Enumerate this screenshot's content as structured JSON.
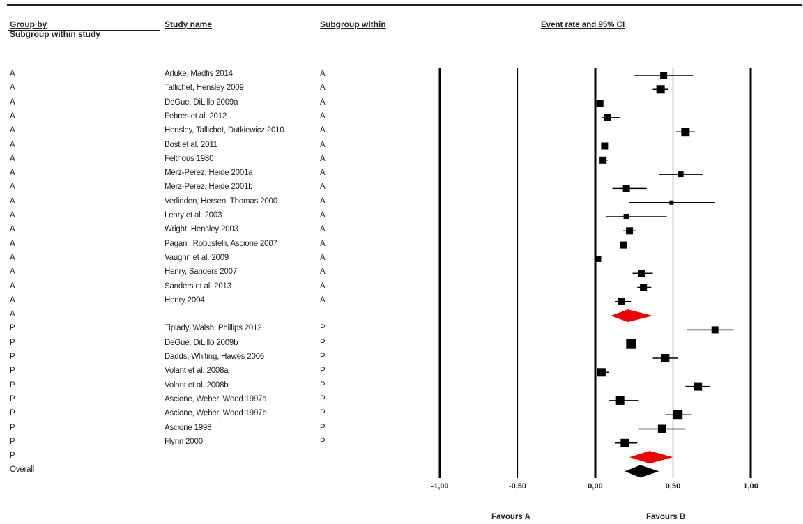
{
  "headers": {
    "group_by": "Group by",
    "subgroup_within_study": "Subgroup within study",
    "study_name": "Study name",
    "subgroup_within": "Subgroup within",
    "event_rate": "Event rate and 95% CI"
  },
  "footer": {
    "favours_left": "Favours A",
    "favours_right": "Favours B"
  },
  "chart_data": {
    "type": "forest",
    "xlim": [
      -1.0,
      1.0
    ],
    "x_ticks": [
      -1.0,
      -0.5,
      0.0,
      0.5,
      1.0
    ],
    "x_tick_labels": [
      "-1,00",
      "-0,50",
      "0,00",
      "0,50",
      "1,00"
    ],
    "rows": [
      {
        "group": "A",
        "study": "Arluke, Madfis 2014",
        "subgroup": "A",
        "estimate": 0.44,
        "lower": 0.25,
        "upper": 0.63,
        "weight": 5
      },
      {
        "group": "A",
        "study": "Tallichet, Hensley 2009",
        "subgroup": "A",
        "estimate": 0.42,
        "lower": 0.37,
        "upper": 0.47,
        "weight": 6
      },
      {
        "group": "A",
        "study": "DeGue, DiLillo 2009a",
        "subgroup": "A",
        "estimate": 0.03,
        "lower": 0.01,
        "upper": 0.05,
        "weight": 5
      },
      {
        "group": "A",
        "study": "Febres et al. 2012",
        "subgroup": "A",
        "estimate": 0.08,
        "lower": 0.04,
        "upper": 0.16,
        "weight": 5
      },
      {
        "group": "A",
        "study": "Hensley, Tallichet, Dutkiewicz 2010",
        "subgroup": "A",
        "estimate": 0.58,
        "lower": 0.52,
        "upper": 0.64,
        "weight": 6
      },
      {
        "group": "A",
        "study": "Bost et al. 2011",
        "subgroup": "A",
        "estimate": 0.06,
        "lower": 0.04,
        "upper": 0.08,
        "weight": 5
      },
      {
        "group": "A",
        "study": "Felthous 1980",
        "subgroup": "A",
        "estimate": 0.05,
        "lower": 0.03,
        "upper": 0.08,
        "weight": 5
      },
      {
        "group": "A",
        "study": "Merz-Perez, Heide 2001a",
        "subgroup": "A",
        "estimate": 0.55,
        "lower": 0.41,
        "upper": 0.69,
        "weight": 4
      },
      {
        "group": "A",
        "study": "Merz-Perez, Heide 2001b",
        "subgroup": "A",
        "estimate": 0.2,
        "lower": 0.11,
        "upper": 0.33,
        "weight": 5
      },
      {
        "group": "A",
        "study": "Verlinden, Hersen, Thomas 2000",
        "subgroup": "A",
        "estimate": 0.49,
        "lower": 0.22,
        "upper": 0.77,
        "weight": 3
      },
      {
        "group": "A",
        "study": "Leary et al. 2003",
        "subgroup": "A",
        "estimate": 0.2,
        "lower": 0.07,
        "upper": 0.46,
        "weight": 4
      },
      {
        "group": "A",
        "study": "Wright, Hensley 2003",
        "subgroup": "A",
        "estimate": 0.22,
        "lower": 0.18,
        "upper": 0.26,
        "weight": 5
      },
      {
        "group": "A",
        "study": "Pagani, Robustelli, Ascione 2007",
        "subgroup": "A",
        "estimate": 0.18,
        "lower": 0.16,
        "upper": 0.2,
        "weight": 5
      },
      {
        "group": "A",
        "study": "Vaughn et al. 2009",
        "subgroup": "A",
        "estimate": 0.02,
        "lower": 0.01,
        "upper": 0.03,
        "weight": 4
      },
      {
        "group": "A",
        "study": "Henry, Sanders 2007",
        "subgroup": "A",
        "estimate": 0.3,
        "lower": 0.24,
        "upper": 0.37,
        "weight": 5
      },
      {
        "group": "A",
        "study": "Sanders et al. 2013",
        "subgroup": "A",
        "estimate": 0.31,
        "lower": 0.27,
        "upper": 0.36,
        "weight": 5
      },
      {
        "group": "A",
        "study": "Henry 2004",
        "subgroup": "A",
        "estimate": 0.17,
        "lower": 0.13,
        "upper": 0.23,
        "weight": 5
      },
      {
        "group": "A",
        "study": "",
        "subgroup": "",
        "estimate": 0.21,
        "lower": 0.1,
        "upper": 0.37,
        "summary": true,
        "color": "#ee0000"
      },
      {
        "group": "P",
        "study": "Tiplady, Walsh, Phillips 2012",
        "subgroup": "P",
        "estimate": 0.77,
        "lower": 0.59,
        "upper": 0.89,
        "weight": 5
      },
      {
        "group": "P",
        "study": "DeGue, DiLillo 2009b",
        "subgroup": "P",
        "estimate": 0.23,
        "lower": 0.21,
        "upper": 0.25,
        "weight": 7
      },
      {
        "group": "P",
        "study": "Dadds, Whiting, Hawes 2006",
        "subgroup": "P",
        "estimate": 0.45,
        "lower": 0.37,
        "upper": 0.53,
        "weight": 6
      },
      {
        "group": "P",
        "study": "Volant et al. 2008a",
        "subgroup": "P",
        "estimate": 0.04,
        "lower": 0.02,
        "upper": 0.09,
        "weight": 6
      },
      {
        "group": "P",
        "study": "Volant et al. 2008b",
        "subgroup": "P",
        "estimate": 0.66,
        "lower": 0.58,
        "upper": 0.74,
        "weight": 6
      },
      {
        "group": "P",
        "study": "Ascione, Weber, Wood 1997a",
        "subgroup": "P",
        "estimate": 0.16,
        "lower": 0.09,
        "upper": 0.28,
        "weight": 6
      },
      {
        "group": "P",
        "study": "Ascione, Weber, Wood 1997b",
        "subgroup": "P",
        "estimate": 0.53,
        "lower": 0.45,
        "upper": 0.62,
        "weight": 7
      },
      {
        "group": "P",
        "study": "Ascione 1998",
        "subgroup": "P",
        "estimate": 0.43,
        "lower": 0.28,
        "upper": 0.58,
        "weight": 6
      },
      {
        "group": "P",
        "study": "Flynn 2000",
        "subgroup": "P",
        "estimate": 0.19,
        "lower": 0.13,
        "upper": 0.27,
        "weight": 6
      },
      {
        "group": "P",
        "study": "",
        "subgroup": "",
        "estimate": 0.35,
        "lower": 0.22,
        "upper": 0.5,
        "summary": true,
        "color": "#ee0000"
      },
      {
        "group": "Overall",
        "study": "",
        "subgroup": "",
        "estimate": 0.29,
        "lower": 0.19,
        "upper": 0.41,
        "summary": true,
        "color": "#000000"
      }
    ]
  }
}
